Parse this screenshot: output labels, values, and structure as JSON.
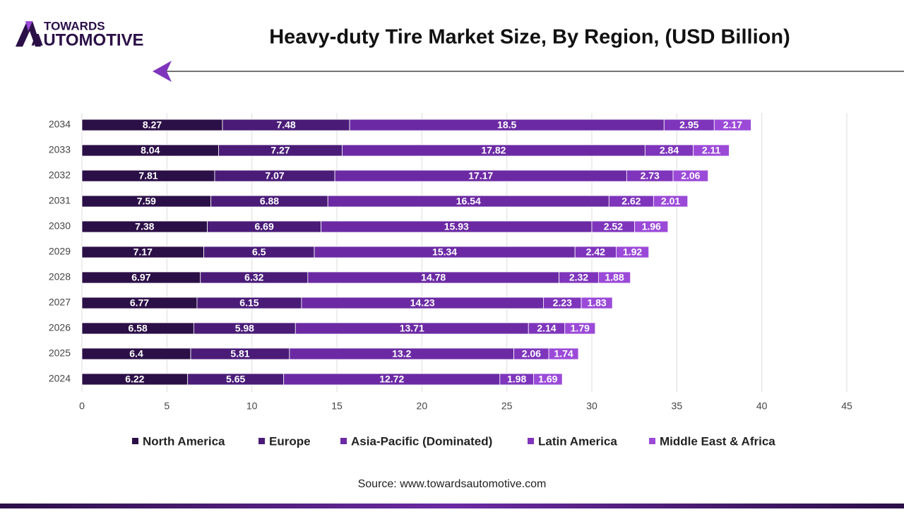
{
  "logo": {
    "line1": "TOWARDS",
    "line2": "AUTOMOTIVE"
  },
  "chart_data": {
    "type": "stacked-bar-horizontal",
    "title": "Heavy-duty Tire Market Size, By Region, (USD Billion)",
    "source": "Source: www.towardsautomotive.com",
    "categories": [
      "2024",
      "2025",
      "2026",
      "2027",
      "2028",
      "2029",
      "2030",
      "2031",
      "2032",
      "2033",
      "2034"
    ],
    "series": [
      {
        "name": "North America",
        "color": "#2b0f47",
        "values": [
          6.22,
          6.4,
          6.58,
          6.77,
          6.97,
          7.17,
          7.38,
          7.59,
          7.81,
          8.04,
          8.27
        ]
      },
      {
        "name": "Europe",
        "color": "#4a1c78",
        "values": [
          5.65,
          5.81,
          5.98,
          6.15,
          6.32,
          6.5,
          6.69,
          6.88,
          7.07,
          7.27,
          7.48
        ]
      },
      {
        "name": "Asia-Pacific (Dominated)",
        "color": "#6b2aa3",
        "values": [
          12.72,
          13.2,
          13.71,
          14.23,
          14.78,
          15.34,
          15.93,
          16.54,
          17.17,
          17.82,
          18.5
        ]
      },
      {
        "name": "Latin America",
        "color": "#7e35bb",
        "values": [
          1.98,
          2.06,
          2.14,
          2.23,
          2.32,
          2.42,
          2.52,
          2.62,
          2.73,
          2.84,
          2.95
        ]
      },
      {
        "name": "Middle East & Africa",
        "color": "#9b4ad8",
        "values": [
          1.69,
          1.74,
          1.79,
          1.83,
          1.88,
          1.92,
          1.96,
          2.01,
          2.06,
          2.11,
          2.17
        ]
      }
    ],
    "xlim": [
      0,
      45
    ],
    "xticks": [
      0,
      5,
      10,
      15,
      20,
      25,
      30,
      35,
      40,
      45
    ],
    "grid": true,
    "legend": "bottom"
  }
}
